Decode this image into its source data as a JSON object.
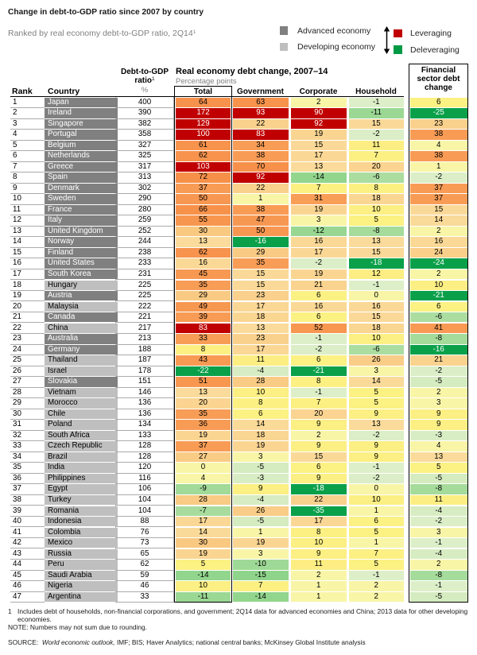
{
  "title": "Change in debt-to-GDP ratio since 2007 by country",
  "subtitle": "Ranked by real economy debt-to-GDP ratio, 2Q14",
  "subtitle_sup": "1",
  "legend": {
    "advanced_label": "Advanced economy",
    "developing_label": "Developing economy",
    "leveraging_label": "Leveraging",
    "deleveraging_label": "Deleveraging"
  },
  "colors": {
    "advanced": "#808080",
    "advanced_text": "#ffffff",
    "developing": "#bfbfbf",
    "developing_text": "#000000",
    "leveraging": "#c00000",
    "deleveraging": "#009a44",
    "scale": [
      {
        "min": 83,
        "max": 999,
        "bg_lo": "#c00000",
        "bg_hi": "#c00000",
        "text": "#ffffff"
      },
      {
        "min": 31,
        "max": 82,
        "bg_lo": "#f89e57",
        "bg_hi": "#f68c46",
        "text": "#000000"
      },
      {
        "min": 13,
        "max": 30,
        "bg_lo": "#fadb9b",
        "bg_hi": "#f9c981",
        "text": "#000000"
      },
      {
        "min": 5,
        "max": 12,
        "bg_lo": "#fcf183",
        "bg_hi": "#fcee83",
        "text": "#000000"
      },
      {
        "min": 0,
        "max": 4,
        "bg_lo": "#f8f5a7",
        "bg_hi": "#f8f5a7",
        "text": "#000000"
      },
      {
        "min": -5,
        "max": -1,
        "bg_lo": "#d5ebc0",
        "bg_hi": "#ddefc9",
        "text": "#000000"
      },
      {
        "min": -15,
        "max": -6,
        "bg_lo": "#8fd48b",
        "bg_hi": "#abdda0",
        "text": "#000000"
      },
      {
        "min": -999,
        "max": -16,
        "bg_lo": "#0aa04a",
        "bg_hi": "#0aa04a",
        "text": "#ffffff"
      }
    ]
  },
  "table_headers": {
    "rank": "Rank",
    "country": "Country",
    "ratio_line1": "Debt-to-GDP",
    "ratio_line2": "ratio",
    "ratio_sup": "1",
    "ratio_unit": "%",
    "group_title": "Real economy debt change, 2007–14",
    "group_subtitle": "Percentage points",
    "total": "Total",
    "government": "Government",
    "corporate": "Corporate",
    "household": "Household",
    "financial_line1": "Financial",
    "financial_line2": "sector debt",
    "financial_line3": "change"
  },
  "chart_data": {
    "type": "heatmap-table",
    "title": "Change in debt-to-GDP ratio since 2007 by country",
    "subtitle": "Ranked by real economy debt-to-GDP ratio, 2Q14",
    "value_unit": "Percentage points",
    "ratio_unit": "%",
    "columns": [
      "Rank",
      "Country",
      "Debt-to-GDP ratio (%)",
      "Total",
      "Government",
      "Corporate",
      "Household",
      "Financial sector debt change"
    ],
    "rows": [
      {
        "rank": 1,
        "country": "Japan",
        "economy": "advanced",
        "ratio": 400,
        "total": 64,
        "government": 63,
        "corporate": 2,
        "household": -1,
        "financial": 6
      },
      {
        "rank": 2,
        "country": "Ireland",
        "economy": "advanced",
        "ratio": 390,
        "total": 172,
        "government": 93,
        "corporate": 90,
        "household": -11,
        "financial": -25
      },
      {
        "rank": 3,
        "country": "Singapore",
        "economy": "advanced",
        "ratio": 382,
        "total": 129,
        "government": 22,
        "corporate": 92,
        "household": 15,
        "financial": 23
      },
      {
        "rank": 4,
        "country": "Portugal",
        "economy": "advanced",
        "ratio": 358,
        "total": 100,
        "government": 83,
        "corporate": 19,
        "household": -2,
        "financial": 38
      },
      {
        "rank": 5,
        "country": "Belgium",
        "economy": "advanced",
        "ratio": 327,
        "total": 61,
        "government": 34,
        "corporate": 15,
        "household": 11,
        "financial": 4
      },
      {
        "rank": 6,
        "country": "Netherlands",
        "economy": "advanced",
        "ratio": 325,
        "total": 62,
        "government": 38,
        "corporate": 17,
        "household": 7,
        "financial": 38
      },
      {
        "rank": 7,
        "country": "Greece",
        "economy": "advanced",
        "ratio": 317,
        "total": 103,
        "government": 70,
        "corporate": 13,
        "household": 20,
        "financial": 1
      },
      {
        "rank": 8,
        "country": "Spain",
        "economy": "advanced",
        "ratio": 313,
        "total": 72,
        "government": 92,
        "corporate": -14,
        "household": -6,
        "financial": -2
      },
      {
        "rank": 9,
        "country": "Denmark",
        "economy": "advanced",
        "ratio": 302,
        "total": 37,
        "government": 22,
        "corporate": 7,
        "household": 8,
        "financial": 37
      },
      {
        "rank": 10,
        "country": "Sweden",
        "economy": "advanced",
        "ratio": 290,
        "total": 50,
        "government": 1,
        "corporate": 31,
        "household": 18,
        "financial": 37
      },
      {
        "rank": 11,
        "country": "France",
        "economy": "advanced",
        "ratio": 280,
        "total": 66,
        "government": 38,
        "corporate": 19,
        "household": 10,
        "financial": 15
      },
      {
        "rank": 12,
        "country": "Italy",
        "economy": "advanced",
        "ratio": 259,
        "total": 55,
        "government": 47,
        "corporate": 3,
        "household": 5,
        "financial": 14
      },
      {
        "rank": 13,
        "country": "United Kingdom",
        "economy": "advanced",
        "ratio": 252,
        "total": 30,
        "government": 50,
        "corporate": -12,
        "household": -8,
        "financial": 2
      },
      {
        "rank": 14,
        "country": "Norway",
        "economy": "advanced",
        "ratio": 244,
        "total": 13,
        "government": -16,
        "corporate": 16,
        "household": 13,
        "financial": 16
      },
      {
        "rank": 15,
        "country": "Finland",
        "economy": "advanced",
        "ratio": 238,
        "total": 62,
        "government": 29,
        "corporate": 17,
        "household": 15,
        "financial": 24
      },
      {
        "rank": 16,
        "country": "United States",
        "economy": "advanced",
        "ratio": 233,
        "total": 16,
        "government": 35,
        "corporate": -2,
        "household": -18,
        "financial": -24
      },
      {
        "rank": 17,
        "country": "South Korea",
        "economy": "advanced",
        "ratio": 231,
        "total": 45,
        "government": 15,
        "corporate": 19,
        "household": 12,
        "financial": 2
      },
      {
        "rank": 18,
        "country": "Hungary",
        "economy": "developing",
        "ratio": 225,
        "total": 35,
        "government": 15,
        "corporate": 21,
        "household": -1,
        "financial": 10
      },
      {
        "rank": 19,
        "country": "Austria",
        "economy": "advanced",
        "ratio": 225,
        "total": 29,
        "government": 23,
        "corporate": 6,
        "household": 0,
        "financial": -21
      },
      {
        "rank": 20,
        "country": "Malaysia",
        "economy": "developing",
        "ratio": 222,
        "total": 49,
        "government": 17,
        "corporate": 16,
        "household": 16,
        "financial": 6
      },
      {
        "rank": 21,
        "country": "Canada",
        "economy": "advanced",
        "ratio": 221,
        "total": 39,
        "government": 18,
        "corporate": 6,
        "household": 15,
        "financial": -6
      },
      {
        "rank": 22,
        "country": "China",
        "economy": "developing",
        "ratio": 217,
        "total": 83,
        "government": 13,
        "corporate": 52,
        "household": 18,
        "financial": 41
      },
      {
        "rank": 23,
        "country": "Australia",
        "economy": "advanced",
        "ratio": 213,
        "total": 33,
        "government": 23,
        "corporate": -1,
        "household": 10,
        "financial": -8
      },
      {
        "rank": 24,
        "country": "Germany",
        "economy": "advanced",
        "ratio": 188,
        "total": 8,
        "government": 17,
        "corporate": -2,
        "household": -6,
        "financial": -16
      },
      {
        "rank": 25,
        "country": "Thailand",
        "economy": "developing",
        "ratio": 187,
        "total": 43,
        "government": 11,
        "corporate": 6,
        "household": 26,
        "financial": 21
      },
      {
        "rank": 26,
        "country": "Israel",
        "economy": "developing",
        "ratio": 178,
        "total": -22,
        "government": -4,
        "corporate": -21,
        "household": 3,
        "financial": -2
      },
      {
        "rank": 27,
        "country": "Slovakia",
        "economy": "advanced",
        "ratio": 151,
        "total": 51,
        "government": 28,
        "corporate": 8,
        "household": 14,
        "financial": -5
      },
      {
        "rank": 28,
        "country": "Vietnam",
        "economy": "developing",
        "ratio": 146,
        "total": 13,
        "government": 10,
        "corporate": -1,
        "household": 5,
        "financial": 2
      },
      {
        "rank": 29,
        "country": "Morocco",
        "economy": "developing",
        "ratio": 136,
        "total": 20,
        "government": 8,
        "corporate": 7,
        "household": 5,
        "financial": 3
      },
      {
        "rank": 30,
        "country": "Chile",
        "economy": "developing",
        "ratio": 136,
        "total": 35,
        "government": 6,
        "corporate": 20,
        "household": 9,
        "financial": 9
      },
      {
        "rank": 31,
        "country": "Poland",
        "economy": "developing",
        "ratio": 134,
        "total": 36,
        "government": 14,
        "corporate": 9,
        "household": 13,
        "financial": 9
      },
      {
        "rank": 32,
        "country": "South Africa",
        "economy": "developing",
        "ratio": 133,
        "total": 19,
        "government": 18,
        "corporate": 2,
        "household": -2,
        "financial": -3
      },
      {
        "rank": 33,
        "country": "Czech Republic",
        "economy": "developing",
        "ratio": 128,
        "total": 37,
        "government": 19,
        "corporate": 9,
        "household": 9,
        "financial": 4
      },
      {
        "rank": 34,
        "country": "Brazil",
        "economy": "developing",
        "ratio": 128,
        "total": 27,
        "government": 3,
        "corporate": 15,
        "household": 9,
        "financial": 13
      },
      {
        "rank": 35,
        "country": "India",
        "economy": "developing",
        "ratio": 120,
        "total": 0,
        "government": -5,
        "corporate": 6,
        "household": -1,
        "financial": 5
      },
      {
        "rank": 36,
        "country": "Philippines",
        "economy": "developing",
        "ratio": 116,
        "total": 4,
        "government": -3,
        "corporate": 9,
        "household": -2,
        "financial": -5
      },
      {
        "rank": 37,
        "country": "Egypt",
        "economy": "developing",
        "ratio": 106,
        "total": -9,
        "government": 9,
        "corporate": -18,
        "household": 0,
        "financial": -8
      },
      {
        "rank": 38,
        "country": "Turkey",
        "economy": "developing",
        "ratio": 104,
        "total": 28,
        "government": -4,
        "corporate": 22,
        "household": 10,
        "financial": 11
      },
      {
        "rank": 39,
        "country": "Romania",
        "economy": "developing",
        "ratio": 104,
        "total": -7,
        "government": 26,
        "corporate": -35,
        "household": 1,
        "financial": -4
      },
      {
        "rank": 40,
        "country": "Indonesia",
        "economy": "developing",
        "ratio": 88,
        "total": 17,
        "government": -5,
        "corporate": 17,
        "household": 6,
        "financial": -2
      },
      {
        "rank": 41,
        "country": "Colombia",
        "economy": "developing",
        "ratio": 76,
        "total": 14,
        "government": 1,
        "corporate": 8,
        "household": 5,
        "financial": 3
      },
      {
        "rank": 42,
        "country": "Mexico",
        "economy": "developing",
        "ratio": 73,
        "total": 30,
        "government": 19,
        "corporate": 10,
        "household": 1,
        "financial": -1
      },
      {
        "rank": 43,
        "country": "Russia",
        "economy": "developing",
        "ratio": 65,
        "total": 19,
        "government": 3,
        "corporate": 9,
        "household": 7,
        "financial": -4
      },
      {
        "rank": 44,
        "country": "Peru",
        "economy": "developing",
        "ratio": 62,
        "total": 5,
        "government": -10,
        "corporate": 11,
        "household": 5,
        "financial": 2
      },
      {
        "rank": 45,
        "country": "Saudi Arabia",
        "economy": "developing",
        "ratio": 59,
        "total": -14,
        "government": -15,
        "corporate": 2,
        "household": -1,
        "financial": -8
      },
      {
        "rank": 46,
        "country": "Nigeria",
        "economy": "developing",
        "ratio": 46,
        "total": 10,
        "government": 7,
        "corporate": 1,
        "household": 2,
        "financial": -1
      },
      {
        "rank": 47,
        "country": "Argentina",
        "economy": "developing",
        "ratio": 33,
        "total": -11,
        "government": -14,
        "corporate": 1,
        "household": 2,
        "financial": -5
      }
    ]
  },
  "footnotes": {
    "fn1_marker": "1",
    "fn1_text": "Includes debt of households, non-financial corporations, and government; 2Q14 data for advanced economies and China; 2013 data for other developing economies.",
    "note": "NOTE: Numbers may not sum due to rounding.",
    "source_prefix": "SOURCE:",
    "source_italic": "World economic outlook,",
    "source_rest": " IMF; BIS; Haver Analytics; national central banks; McKinsey Global Institute analysis"
  }
}
